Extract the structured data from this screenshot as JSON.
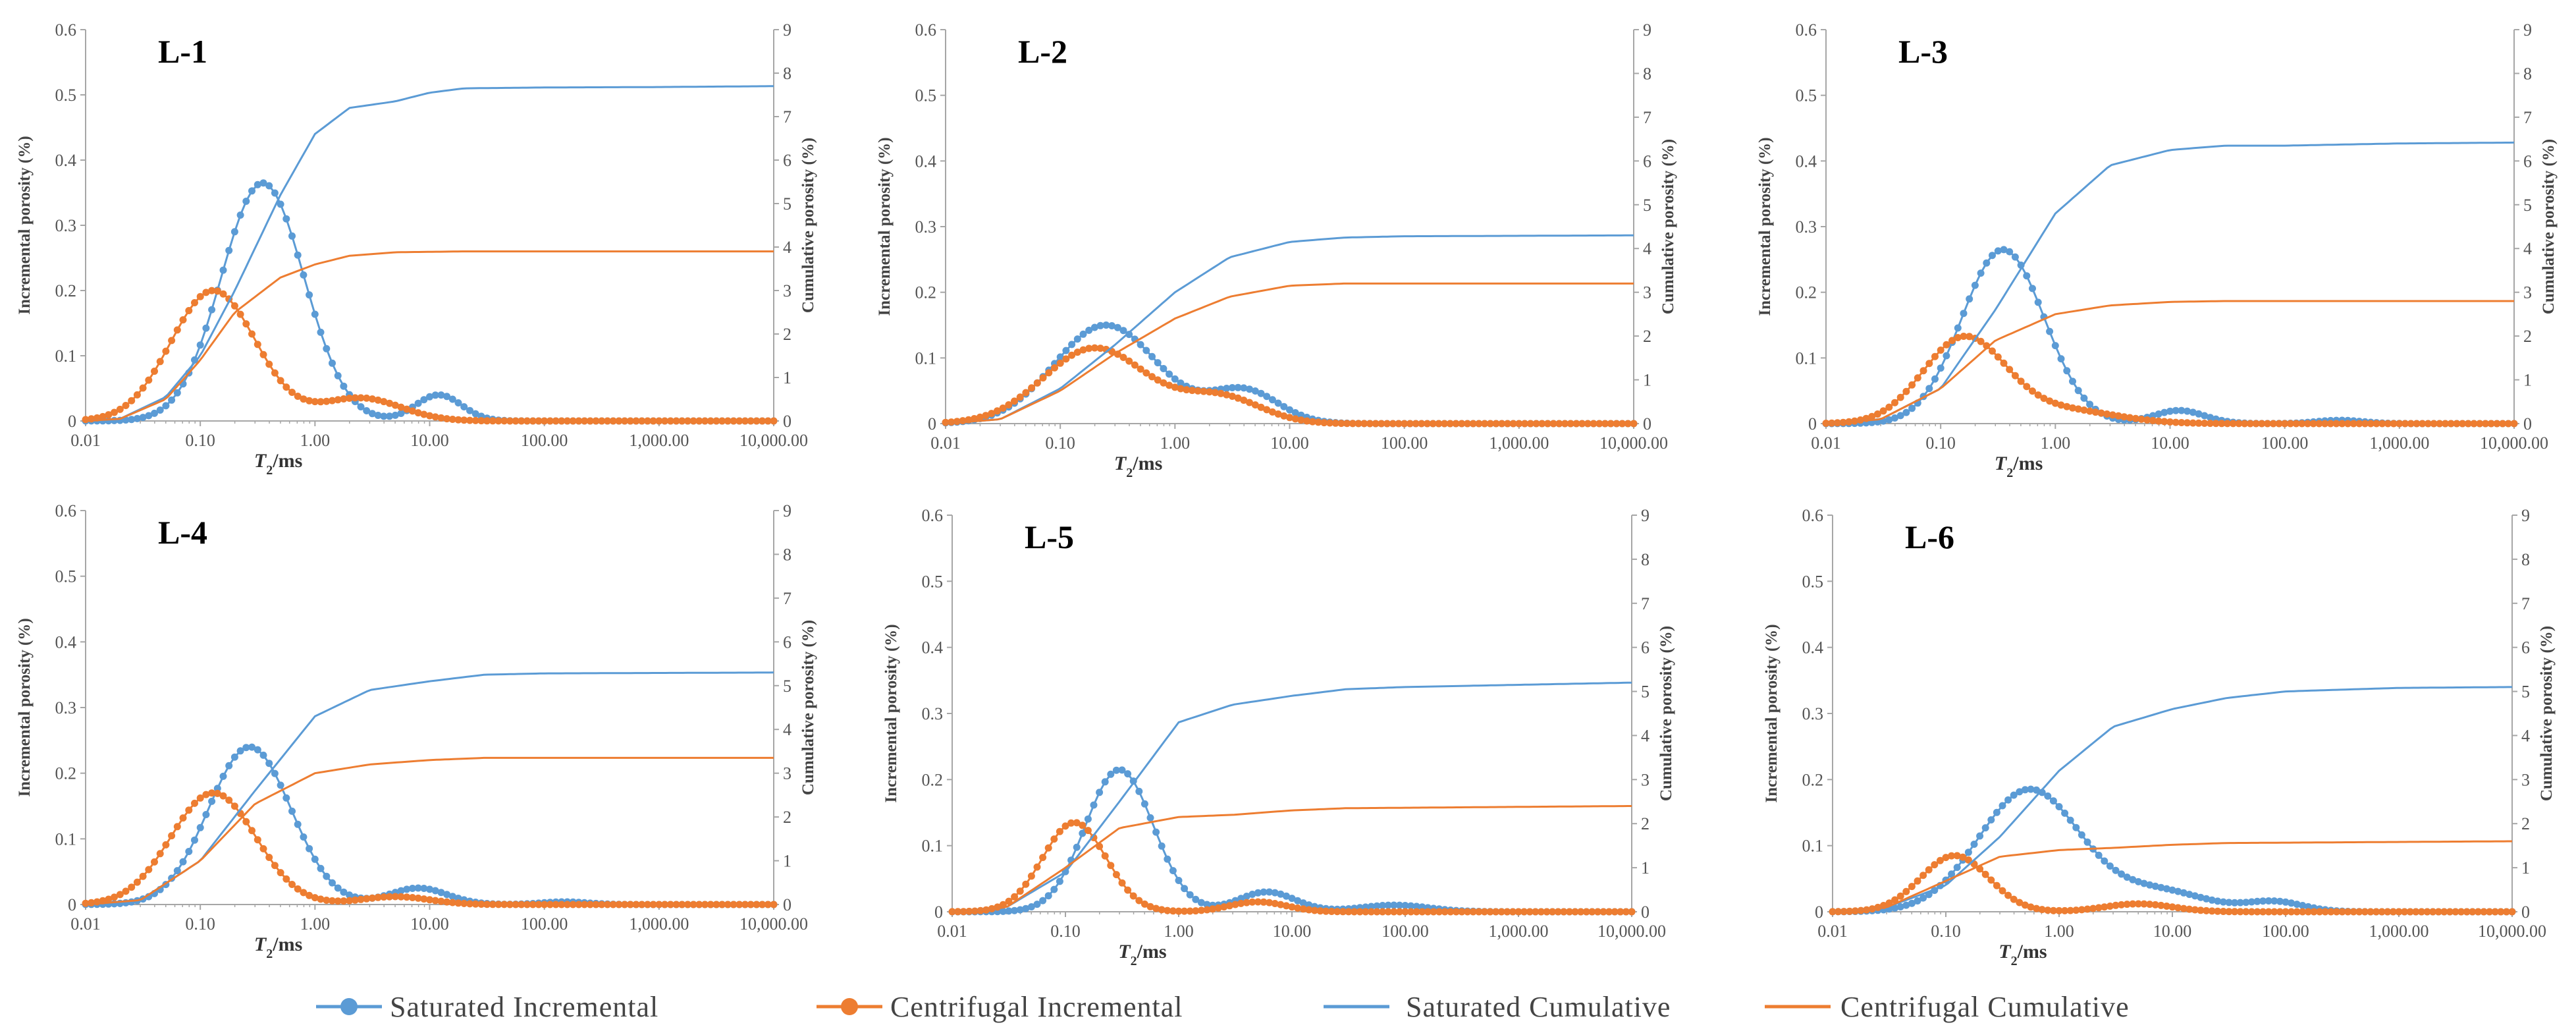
{
  "colors": {
    "saturated": "#5B9BD5",
    "centrifugal": "#ED7D31",
    "axis": "#A6A6A6"
  },
  "legend": {
    "saturated_incremental": "Saturated Incremental",
    "centrifugal_incremental": "Centrifugal Incremental",
    "saturated_cumulative": "Saturated Cumulative",
    "centrifugal_cumulative": "Centrifugal Cumulative"
  },
  "chart_data": [
    {
      "type": "line",
      "title": "L-1",
      "xlabel": "T2/ms",
      "ylabel_left": "Incremental porosity (%)",
      "ylabel_right": "Cumulative porosity (%)",
      "xscale": "log",
      "xlim": [
        0.01,
        10000
      ],
      "ylim_left": [
        0,
        0.6
      ],
      "ylim_right": [
        0,
        9
      ],
      "x_ticks": [
        "0.01",
        "0.10",
        "1.00",
        "10.00",
        "100.00",
        "1,000.00",
        "10,000.00"
      ],
      "y_ticks_left": [
        "0",
        "0.1",
        "0.2",
        "0.3",
        "0.4",
        "0.5",
        "0.6"
      ],
      "y_ticks_right": [
        "0",
        "1",
        "2",
        "3",
        "4",
        "5",
        "6",
        "7",
        "8",
        "9"
      ],
      "series": [
        {
          "name": "Saturated Incremental",
          "axis": "left",
          "components": [
            [
              0.365,
              0.35,
              0.36
            ],
            [
              0.04,
              12,
              0.2
            ]
          ]
        },
        {
          "name": "Centrifugal Incremental",
          "axis": "left",
          "components": [
            [
              0.2,
              0.13,
              0.37
            ],
            [
              0.035,
              2.5,
              0.35
            ]
          ]
        },
        {
          "name": "Saturated Cumulative",
          "axis": "right",
          "points": [
            [
              0.01,
              0
            ],
            [
              0.02,
              0.05
            ],
            [
              0.05,
              0.55
            ],
            [
              0.1,
              1.5
            ],
            [
              0.2,
              3.0
            ],
            [
              0.5,
              5.2
            ],
            [
              1,
              6.6
            ],
            [
              2,
              7.2
            ],
            [
              5,
              7.35
            ],
            [
              10,
              7.55
            ],
            [
              20,
              7.65
            ],
            [
              100,
              7.67
            ],
            [
              1000,
              7.68
            ],
            [
              10000,
              7.7
            ]
          ]
        },
        {
          "name": "Centrifugal Cumulative",
          "axis": "right",
          "points": [
            [
              0.01,
              0
            ],
            [
              0.02,
              0.05
            ],
            [
              0.05,
              0.5
            ],
            [
              0.1,
              1.4
            ],
            [
              0.2,
              2.5
            ],
            [
              0.5,
              3.3
            ],
            [
              1,
              3.6
            ],
            [
              2,
              3.8
            ],
            [
              5,
              3.88
            ],
            [
              20,
              3.9
            ],
            [
              100,
              3.9
            ],
            [
              10000,
              3.9
            ]
          ]
        }
      ]
    },
    {
      "type": "line",
      "title": "L-2",
      "xlabel": "T2/ms",
      "ylabel_left": "Incremental porosity (%)",
      "ylabel_right": "Cumulative porosity (%)",
      "xscale": "log",
      "xlim": [
        0.01,
        10000
      ],
      "ylim_left": [
        0,
        0.6
      ],
      "ylim_right": [
        0,
        9
      ],
      "x_ticks": [
        "0.01",
        "0.10",
        "1.00",
        "10.00",
        "100.00",
        "1,000.00",
        "10,000.00"
      ],
      "y_ticks_left": [
        "0",
        "0.1",
        "0.2",
        "0.3",
        "0.4",
        "0.5",
        "0.6"
      ],
      "y_ticks_right": [
        "0",
        "1",
        "2",
        "3",
        "4",
        "5",
        "6",
        "7",
        "8",
        "9"
      ],
      "series": [
        {
          "name": "Saturated Incremental",
          "axis": "left",
          "components": [
            [
              0.15,
              0.25,
              0.45
            ],
            [
              0.05,
              4,
              0.3
            ]
          ]
        },
        {
          "name": "Centrifugal Incremental",
          "axis": "left",
          "components": [
            [
              0.115,
              0.2,
              0.45
            ],
            [
              0.04,
              2.5,
              0.35
            ]
          ]
        },
        {
          "name": "Saturated Cumulative",
          "axis": "right",
          "points": [
            [
              0.01,
              0
            ],
            [
              0.03,
              0.1
            ],
            [
              0.1,
              0.8
            ],
            [
              0.3,
              1.8
            ],
            [
              1,
              3.0
            ],
            [
              3,
              3.8
            ],
            [
              10,
              4.15
            ],
            [
              30,
              4.25
            ],
            [
              100,
              4.28
            ],
            [
              10000,
              4.3
            ]
          ]
        },
        {
          "name": "Centrifugal Cumulative",
          "axis": "right",
          "points": [
            [
              0.01,
              0
            ],
            [
              0.03,
              0.1
            ],
            [
              0.1,
              0.75
            ],
            [
              0.3,
              1.6
            ],
            [
              1,
              2.4
            ],
            [
              3,
              2.9
            ],
            [
              10,
              3.15
            ],
            [
              30,
              3.2
            ],
            [
              10000,
              3.2
            ]
          ]
        }
      ]
    },
    {
      "type": "line",
      "title": "L-3",
      "xlabel": "T2/ms",
      "ylabel_left": "Incremental porosity (%)",
      "ylabel_right": "Cumulative porosity (%)",
      "xscale": "log",
      "xlim": [
        0.01,
        10000
      ],
      "ylim_left": [
        0,
        0.6
      ],
      "ylim_right": [
        0,
        9
      ],
      "x_ticks": [
        "0.01",
        "0.10",
        "1.00",
        "10.00",
        "100.00",
        "1,000.00",
        "10,000.00"
      ],
      "y_ticks_left": [
        "0",
        "0.1",
        "0.2",
        "0.3",
        "0.4",
        "0.5",
        "0.6"
      ],
      "y_ticks_right": [
        "0",
        "1",
        "2",
        "3",
        "4",
        "5",
        "6",
        "7",
        "8",
        "9"
      ],
      "series": [
        {
          "name": "Saturated Incremental",
          "axis": "left",
          "components": [
            [
              0.265,
              0.35,
              0.36
            ],
            [
              0.02,
              12,
              0.22
            ],
            [
              0.005,
              300,
              0.2
            ]
          ]
        },
        {
          "name": "Centrifugal Incremental",
          "axis": "left",
          "components": [
            [
              0.13,
              0.16,
              0.36
            ],
            [
              0.02,
              1.2,
              0.45
            ]
          ]
        },
        {
          "name": "Saturated Cumulative",
          "axis": "right",
          "points": [
            [
              0.01,
              0
            ],
            [
              0.03,
              0.1
            ],
            [
              0.1,
              0.8
            ],
            [
              0.3,
              2.6
            ],
            [
              1,
              4.8
            ],
            [
              3,
              5.9
            ],
            [
              10,
              6.25
            ],
            [
              30,
              6.35
            ],
            [
              100,
              6.35
            ],
            [
              1000,
              6.4
            ],
            [
              10000,
              6.42
            ]
          ]
        },
        {
          "name": "Centrifugal Cumulative",
          "axis": "right",
          "points": [
            [
              0.01,
              0
            ],
            [
              0.03,
              0.1
            ],
            [
              0.1,
              0.8
            ],
            [
              0.3,
              1.9
            ],
            [
              1,
              2.5
            ],
            [
              3,
              2.7
            ],
            [
              10,
              2.78
            ],
            [
              30,
              2.8
            ],
            [
              10000,
              2.8
            ]
          ]
        }
      ]
    },
    {
      "type": "line",
      "title": "L-4",
      "xlabel": "T2/ms",
      "ylabel_left": "Incremental porosity (%)",
      "ylabel_right": "Cumulative porosity (%)",
      "xscale": "log",
      "xlim": [
        0.01,
        10000
      ],
      "ylim_left": [
        0,
        0.6
      ],
      "ylim_right": [
        0,
        9
      ],
      "x_ticks": [
        "0.01",
        "0.10",
        "1.00",
        "10.00",
        "100.00",
        "1,000.00",
        "10,000.00"
      ],
      "y_ticks_left": [
        "0",
        "0.1",
        "0.2",
        "0.3",
        "0.4",
        "0.5",
        "0.6"
      ],
      "y_ticks_right": [
        "0",
        "1",
        "2",
        "3",
        "4",
        "5",
        "6",
        "7",
        "8",
        "9"
      ],
      "series": [
        {
          "name": "Saturated Incremental",
          "axis": "left",
          "components": [
            [
              0.24,
              0.27,
              0.36
            ],
            [
              0.025,
              8,
              0.25
            ],
            [
              0.004,
              150,
              0.2
            ]
          ]
        },
        {
          "name": "Centrifugal Incremental",
          "axis": "left",
          "components": [
            [
              0.17,
              0.13,
              0.37
            ],
            [
              0.012,
              5,
              0.3
            ]
          ]
        },
        {
          "name": "Saturated Cumulative",
          "axis": "right",
          "points": [
            [
              0.01,
              0
            ],
            [
              0.03,
              0.1
            ],
            [
              0.1,
              1.0
            ],
            [
              0.3,
              2.6
            ],
            [
              1,
              4.3
            ],
            [
              3,
              4.9
            ],
            [
              10,
              5.1
            ],
            [
              30,
              5.25
            ],
            [
              100,
              5.28
            ],
            [
              10000,
              5.3
            ]
          ]
        },
        {
          "name": "Centrifugal Cumulative",
          "axis": "right",
          "points": [
            [
              0.01,
              0
            ],
            [
              0.03,
              0.1
            ],
            [
              0.1,
              1.0
            ],
            [
              0.3,
              2.3
            ],
            [
              1,
              3.0
            ],
            [
              3,
              3.2
            ],
            [
              10,
              3.3
            ],
            [
              30,
              3.35
            ],
            [
              10000,
              3.35
            ]
          ]
        }
      ]
    },
    {
      "type": "line",
      "title": "L-5",
      "xlabel": "T2/ms",
      "ylabel_left": "Incremental porosity (%)",
      "ylabel_right": "Cumulative porosity (%)",
      "xscale": "log",
      "xlim": [
        0.01,
        10000
      ],
      "ylim_left": [
        0,
        0.6
      ],
      "ylim_right": [
        0,
        9
      ],
      "x_ticks": [
        "0.01",
        "0.10",
        "1.00",
        "10.00",
        "100.00",
        "1,000.00",
        "10,000.00"
      ],
      "y_ticks_left": [
        "0",
        "0.1",
        "0.2",
        "0.3",
        "0.4",
        "0.5",
        "0.6"
      ],
      "y_ticks_right": [
        "0",
        "1",
        "2",
        "3",
        "4",
        "5",
        "6",
        "7",
        "8",
        "9"
      ],
      "series": [
        {
          "name": "Saturated Incremental",
          "axis": "left",
          "components": [
            [
              0.215,
              0.3,
              0.3
            ],
            [
              0.03,
              6,
              0.25
            ],
            [
              0.01,
              80,
              0.3
            ]
          ]
        },
        {
          "name": "Centrifugal Incremental",
          "axis": "left",
          "components": [
            [
              0.135,
              0.12,
              0.28
            ],
            [
              0.015,
              5,
              0.25
            ]
          ]
        },
        {
          "name": "Saturated Cumulative",
          "axis": "right",
          "points": [
            [
              0.01,
              0
            ],
            [
              0.03,
              0.1
            ],
            [
              0.1,
              0.9
            ],
            [
              0.3,
              2.5
            ],
            [
              1,
              4.3
            ],
            [
              3,
              4.7
            ],
            [
              10,
              4.9
            ],
            [
              30,
              5.05
            ],
            [
              100,
              5.1
            ],
            [
              1000,
              5.15
            ],
            [
              10000,
              5.2
            ]
          ]
        },
        {
          "name": "Centrifugal Cumulative",
          "axis": "right",
          "points": [
            [
              0.01,
              0
            ],
            [
              0.03,
              0.1
            ],
            [
              0.1,
              1.0
            ],
            [
              0.3,
              1.9
            ],
            [
              1,
              2.15
            ],
            [
              3,
              2.2
            ],
            [
              10,
              2.3
            ],
            [
              30,
              2.35
            ],
            [
              10000,
              2.4
            ]
          ]
        }
      ]
    },
    {
      "type": "line",
      "title": "L-6",
      "xlabel": "T2/ms",
      "ylabel_left": "Incremental porosity (%)",
      "ylabel_right": "Cumulative porosity (%)",
      "xscale": "log",
      "xlim": [
        0.01,
        10000
      ],
      "ylim_left": [
        0,
        0.6
      ],
      "ylim_right": [
        0,
        9
      ],
      "x_ticks": [
        "0.01",
        "0.10",
        "1.00",
        "10.00",
        "100.00",
        "1,000.00",
        "10,000.00"
      ],
      "y_ticks_left": [
        "0",
        "0.1",
        "0.2",
        "0.3",
        "0.4",
        "0.5",
        "0.6"
      ],
      "y_ticks_right": [
        "0",
        "1",
        "2",
        "3",
        "4",
        "5",
        "6",
        "7",
        "8",
        "9"
      ],
      "series": [
        {
          "name": "Saturated Incremental",
          "axis": "left",
          "components": [
            [
              0.185,
              0.55,
              0.45
            ],
            [
              0.03,
              8,
              0.4
            ],
            [
              0.015,
              80,
              0.25
            ]
          ]
        },
        {
          "name": "Centrifugal Incremental",
          "axis": "left",
          "components": [
            [
              0.085,
              0.12,
              0.3
            ],
            [
              0.012,
              5,
              0.3
            ]
          ]
        },
        {
          "name": "Saturated Cumulative",
          "axis": "right",
          "points": [
            [
              0.01,
              0
            ],
            [
              0.03,
              0.1
            ],
            [
              0.1,
              0.6
            ],
            [
              0.3,
              1.7
            ],
            [
              1,
              3.2
            ],
            [
              3,
              4.2
            ],
            [
              10,
              4.6
            ],
            [
              30,
              4.85
            ],
            [
              100,
              5.0
            ],
            [
              1000,
              5.08
            ],
            [
              10000,
              5.1
            ]
          ]
        },
        {
          "name": "Centrifugal Cumulative",
          "axis": "right",
          "points": [
            [
              0.01,
              0
            ],
            [
              0.03,
              0.1
            ],
            [
              0.1,
              0.7
            ],
            [
              0.3,
              1.25
            ],
            [
              1,
              1.4
            ],
            [
              3,
              1.45
            ],
            [
              10,
              1.52
            ],
            [
              30,
              1.56
            ],
            [
              10000,
              1.6
            ]
          ]
        }
      ]
    }
  ]
}
